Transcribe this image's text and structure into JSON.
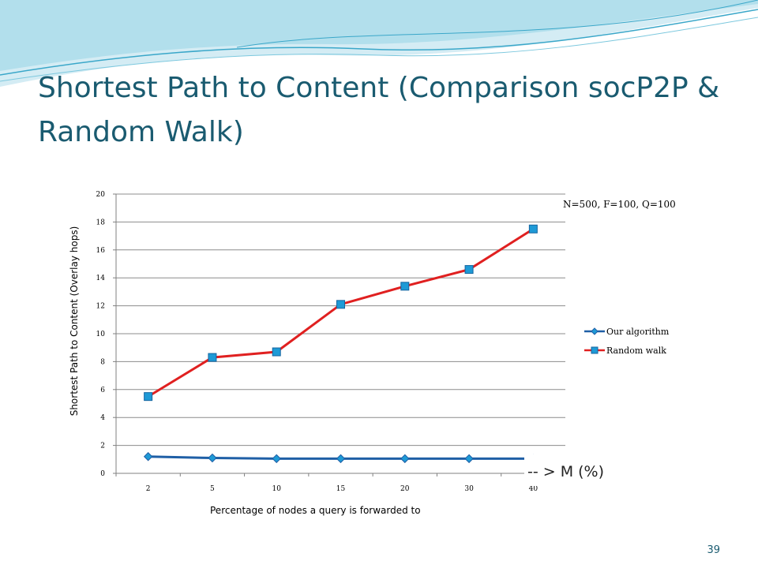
{
  "slide": {
    "title": "Shortest Path to Content (Comparison socP2P & Random Walk)",
    "page_number": "39"
  },
  "colors": {
    "title": "#1a5b70",
    "series_our": "#1f5fa6",
    "series_random": "#e02020",
    "marker_fill": "#1e9ad6",
    "wave_light": "#a9dcea",
    "wave_dark": "#3aa7c9"
  },
  "chart_data": {
    "type": "line",
    "title": "",
    "xlabel": "Percentage of nodes a query is forwarded to",
    "ylabel": "Shortest Path to Content (Overlay hops)",
    "categories": [
      "2",
      "5",
      "10",
      "15",
      "20",
      "30",
      "40"
    ],
    "ylim": [
      0,
      20
    ],
    "yticks": [
      "0",
      "2",
      "4",
      "6",
      "8",
      "10",
      "12",
      "14",
      "16",
      "18",
      "20"
    ],
    "grid": true,
    "legend_position": "right",
    "series": [
      {
        "name": "Our algorithm",
        "values": [
          1.2,
          1.1,
          1.05,
          1.05,
          1.05,
          1.05,
          1.05
        ],
        "marker": "diamond",
        "color": "#1f5fa6"
      },
      {
        "name": "Random walk",
        "values": [
          5.5,
          8.3,
          8.7,
          12.1,
          13.4,
          14.6,
          17.5
        ],
        "marker": "square",
        "color": "#e02020"
      }
    ],
    "annotations": {
      "params": "N=500, F=100, Q=100",
      "x_axis_note": "-- > M (%)"
    }
  }
}
